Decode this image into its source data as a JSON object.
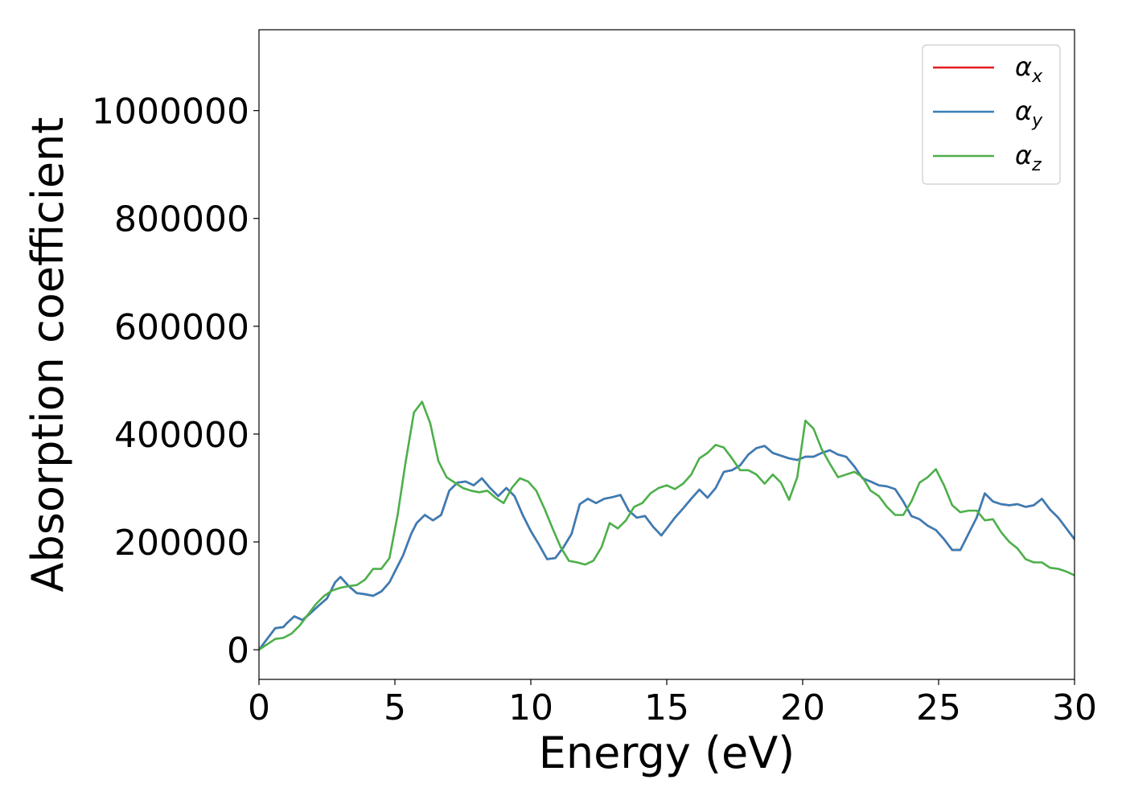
{
  "chart_data": {
    "type": "line",
    "title": "",
    "xlabel": "Energy (eV)",
    "ylabel": "Absorption coefficient",
    "xlim": [
      0,
      30
    ],
    "ylim": [
      -55000,
      1150000
    ],
    "xticks": [
      0,
      5,
      10,
      15,
      20,
      25,
      30
    ],
    "yticks": [
      0,
      200000,
      400000,
      600000,
      800000,
      1000000
    ],
    "grid": false,
    "legend_position": "top-right",
    "series": [
      {
        "name": "αx",
        "symbol": "α",
        "subscript": "x",
        "color": "#e41a1c",
        "x": [
          0,
          0.3,
          0.6,
          0.9,
          1.0,
          1.3,
          1.6,
          1.9,
          2.2,
          2.5,
          2.8,
          3.0,
          3.3,
          3.6,
          3.9,
          4.2,
          4.5,
          4.8,
          5.0,
          5.3,
          5.6,
          5.8,
          6.1,
          6.4,
          6.7,
          7.0,
          7.3,
          7.6,
          7.9,
          8.2,
          8.5,
          8.8,
          9.1,
          9.4,
          9.7,
          10.0,
          10.3,
          10.6,
          10.9,
          11.2,
          11.5,
          11.8,
          12.1,
          12.4,
          12.7,
          13.0,
          13.3,
          13.6,
          13.9,
          14.2,
          14.5,
          14.8,
          15.0,
          15.3,
          15.6,
          15.9,
          16.2,
          16.5,
          16.8,
          17.1,
          17.4,
          17.7,
          18.0,
          18.3,
          18.6,
          18.9,
          19.2,
          19.5,
          19.8,
          20.1,
          20.4,
          20.7,
          21.0,
          21.3,
          21.6,
          21.9,
          22.2,
          22.5,
          22.8,
          23.1,
          23.4,
          23.7,
          24.0,
          24.3,
          24.6,
          24.9,
          25.2,
          25.5,
          25.8,
          26.1,
          26.4,
          26.7,
          27.0,
          27.3,
          27.6,
          27.9,
          28.2,
          28.5,
          28.8,
          29.1,
          29.4,
          29.7,
          30.0
        ],
        "y": [
          0,
          20000,
          40000,
          42000,
          48000,
          62000,
          55000,
          68000,
          82000,
          95000,
          125000,
          135000,
          118000,
          105000,
          103000,
          100000,
          108000,
          125000,
          145000,
          175000,
          215000,
          235000,
          250000,
          240000,
          250000,
          295000,
          310000,
          312000,
          305000,
          318000,
          300000,
          285000,
          300000,
          285000,
          250000,
          220000,
          195000,
          168000,
          170000,
          190000,
          215000,
          270000,
          280000,
          272000,
          280000,
          283000,
          287000,
          258000,
          245000,
          248000,
          228000,
          212000,
          225000,
          245000,
          262000,
          280000,
          297000,
          282000,
          300000,
          330000,
          333000,
          342000,
          362000,
          374000,
          378000,
          365000,
          360000,
          355000,
          352000,
          358000,
          358000,
          365000,
          370000,
          362000,
          358000,
          340000,
          318000,
          312000,
          305000,
          303000,
          298000,
          275000,
          248000,
          242000,
          230000,
          222000,
          205000,
          185000,
          185000,
          215000,
          245000,
          290000,
          275000,
          270000,
          268000,
          270000,
          265000,
          268000,
          280000,
          260000,
          245000,
          225000,
          205000
        ]
      },
      {
        "name": "αy",
        "symbol": "α",
        "subscript": "y",
        "color": "#377eb8",
        "x": [
          0,
          0.3,
          0.6,
          0.9,
          1.0,
          1.3,
          1.6,
          1.9,
          2.2,
          2.5,
          2.8,
          3.0,
          3.3,
          3.6,
          3.9,
          4.2,
          4.5,
          4.8,
          5.0,
          5.3,
          5.6,
          5.8,
          6.1,
          6.4,
          6.7,
          7.0,
          7.3,
          7.6,
          7.9,
          8.2,
          8.5,
          8.8,
          9.1,
          9.4,
          9.7,
          10.0,
          10.3,
          10.6,
          10.9,
          11.2,
          11.5,
          11.8,
          12.1,
          12.4,
          12.7,
          13.0,
          13.3,
          13.6,
          13.9,
          14.2,
          14.5,
          14.8,
          15.0,
          15.3,
          15.6,
          15.9,
          16.2,
          16.5,
          16.8,
          17.1,
          17.4,
          17.7,
          18.0,
          18.3,
          18.6,
          18.9,
          19.2,
          19.5,
          19.8,
          20.1,
          20.4,
          20.7,
          21.0,
          21.3,
          21.6,
          21.9,
          22.2,
          22.5,
          22.8,
          23.1,
          23.4,
          23.7,
          24.0,
          24.3,
          24.6,
          24.9,
          25.2,
          25.5,
          25.8,
          26.1,
          26.4,
          26.7,
          27.0,
          27.3,
          27.6,
          27.9,
          28.2,
          28.5,
          28.8,
          29.1,
          29.4,
          29.7,
          30.0
        ],
        "y": [
          0,
          20000,
          40000,
          42000,
          48000,
          62000,
          55000,
          68000,
          82000,
          95000,
          125000,
          135000,
          118000,
          105000,
          103000,
          100000,
          108000,
          125000,
          145000,
          175000,
          215000,
          235000,
          250000,
          240000,
          250000,
          295000,
          310000,
          312000,
          305000,
          318000,
          300000,
          285000,
          300000,
          285000,
          250000,
          220000,
          195000,
          168000,
          170000,
          190000,
          215000,
          270000,
          280000,
          272000,
          280000,
          283000,
          287000,
          258000,
          245000,
          248000,
          228000,
          212000,
          225000,
          245000,
          262000,
          280000,
          297000,
          282000,
          300000,
          330000,
          333000,
          342000,
          362000,
          374000,
          378000,
          365000,
          360000,
          355000,
          352000,
          358000,
          358000,
          365000,
          370000,
          362000,
          358000,
          340000,
          318000,
          312000,
          305000,
          303000,
          298000,
          275000,
          248000,
          242000,
          230000,
          222000,
          205000,
          185000,
          185000,
          215000,
          245000,
          290000,
          275000,
          270000,
          268000,
          270000,
          265000,
          268000,
          280000,
          260000,
          245000,
          225000,
          205000
        ]
      },
      {
        "name": "αz",
        "symbol": "α",
        "subscript": "z",
        "color": "#4daf4a",
        "x": [
          0,
          0.3,
          0.6,
          0.9,
          1.2,
          1.5,
          1.8,
          2.1,
          2.4,
          2.7,
          3.0,
          3.3,
          3.6,
          3.9,
          4.2,
          4.5,
          4.8,
          5.1,
          5.4,
          5.7,
          6.0,
          6.3,
          6.6,
          6.9,
          7.2,
          7.5,
          7.8,
          8.1,
          8.4,
          8.7,
          9.0,
          9.3,
          9.6,
          9.9,
          10.2,
          10.5,
          10.8,
          11.1,
          11.4,
          11.7,
          12.0,
          12.3,
          12.6,
          12.9,
          13.2,
          13.5,
          13.8,
          14.1,
          14.4,
          14.7,
          15.0,
          15.3,
          15.6,
          15.9,
          16.2,
          16.5,
          16.8,
          17.1,
          17.4,
          17.7,
          18.0,
          18.3,
          18.6,
          18.9,
          19.2,
          19.5,
          19.8,
          20.1,
          20.4,
          20.7,
          21.0,
          21.3,
          21.6,
          21.9,
          22.2,
          22.5,
          22.8,
          23.1,
          23.4,
          23.7,
          24.0,
          24.3,
          24.6,
          24.9,
          25.2,
          25.5,
          25.8,
          26.1,
          26.4,
          26.7,
          27.0,
          27.3,
          27.6,
          27.9,
          28.2,
          28.5,
          28.8,
          29.1,
          29.4,
          29.7,
          30.0
        ],
        "y": [
          0,
          10000,
          20000,
          22000,
          30000,
          45000,
          65000,
          85000,
          100000,
          110000,
          115000,
          118000,
          120000,
          130000,
          150000,
          150000,
          170000,
          250000,
          350000,
          440000,
          460000,
          420000,
          350000,
          320000,
          310000,
          300000,
          295000,
          292000,
          295000,
          282000,
          272000,
          300000,
          318000,
          312000,
          295000,
          262000,
          225000,
          190000,
          165000,
          162000,
          158000,
          165000,
          190000,
          235000,
          225000,
          240000,
          265000,
          272000,
          290000,
          300000,
          305000,
          298000,
          308000,
          325000,
          355000,
          365000,
          380000,
          375000,
          355000,
          333000,
          333000,
          325000,
          308000,
          325000,
          310000,
          278000,
          320000,
          425000,
          410000,
          372000,
          345000,
          320000,
          325000,
          330000,
          320000,
          295000,
          285000,
          265000,
          250000,
          250000,
          275000,
          310000,
          320000,
          335000,
          305000,
          268000,
          255000,
          258000,
          258000,
          240000,
          242000,
          218000,
          200000,
          188000,
          168000,
          162000,
          162000,
          152000,
          150000,
          145000,
          138000
        ]
      }
    ]
  }
}
